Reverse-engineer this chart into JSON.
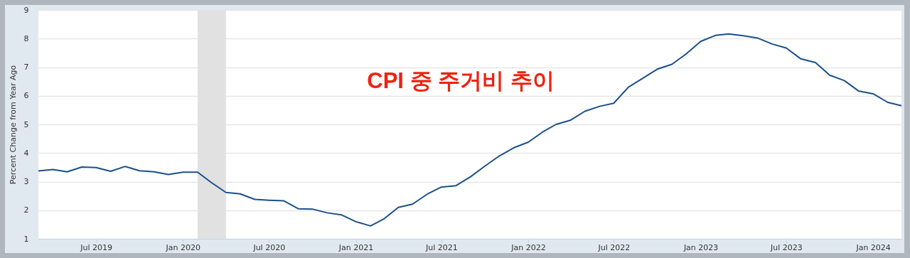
{
  "chart_data": {
    "type": "line",
    "annotations": [
      "CPI 중 주거비 추이"
    ],
    "ylabel": "Percent Change from Year Ago",
    "x": [
      "2019-03",
      "2019-04",
      "2019-05",
      "2019-06",
      "2019-07",
      "2019-08",
      "2019-09",
      "2019-10",
      "2019-11",
      "2019-12",
      "2020-01",
      "2020-02",
      "2020-03",
      "2020-04",
      "2020-05",
      "2020-06",
      "2020-07",
      "2020-08",
      "2020-09",
      "2020-10",
      "2020-11",
      "2020-12",
      "2021-01",
      "2021-02",
      "2021-03",
      "2021-04",
      "2021-05",
      "2021-06",
      "2021-07",
      "2021-08",
      "2021-09",
      "2021-10",
      "2021-11",
      "2021-12",
      "2022-01",
      "2022-02",
      "2022-03",
      "2022-04",
      "2022-05",
      "2022-06",
      "2022-07",
      "2022-08",
      "2022-09",
      "2022-10",
      "2022-11",
      "2022-12",
      "2023-01",
      "2023-02",
      "2023-03",
      "2023-04",
      "2023-05",
      "2023-06",
      "2023-07",
      "2023-08",
      "2023-09",
      "2023-10",
      "2023-11",
      "2023-12",
      "2024-01",
      "2024-02",
      "2024-03"
    ],
    "series": [
      {
        "color": "#1b4f8a",
        "values": [
          3.37,
          3.42,
          3.34,
          3.51,
          3.49,
          3.36,
          3.53,
          3.38,
          3.34,
          3.25,
          3.33,
          3.33,
          2.97,
          2.62,
          2.57,
          2.38,
          2.35,
          2.33,
          2.05,
          2.04,
          1.91,
          1.84,
          1.6,
          1.45,
          1.69,
          2.1,
          2.21,
          2.56,
          2.81,
          2.86,
          3.17,
          3.54,
          3.9,
          4.18,
          4.38,
          4.74,
          5.0,
          5.15,
          5.46,
          5.63,
          5.74,
          6.3,
          6.62,
          6.93,
          7.1,
          7.46,
          7.9,
          8.11,
          8.16,
          8.1,
          8.02,
          7.81,
          7.67,
          7.29,
          7.16,
          6.72,
          6.53,
          6.17,
          6.07,
          5.77,
          5.65
        ]
      }
    ],
    "xlim": [
      "2019-03",
      "2024-03"
    ],
    "xticks": [
      {
        "value": "2019-07",
        "label": "Jul 2019"
      },
      {
        "value": "2020-01",
        "label": "Jan 2020"
      },
      {
        "value": "2020-07",
        "label": "Jul 2020"
      },
      {
        "value": "2021-01",
        "label": "Jan 2021"
      },
      {
        "value": "2021-07",
        "label": "Jul 2021"
      },
      {
        "value": "2022-01",
        "label": "Jan 2022"
      },
      {
        "value": "2022-07",
        "label": "Jul 2022"
      },
      {
        "value": "2023-01",
        "label": "Jan 2023"
      },
      {
        "value": "2023-07",
        "label": "Jul 2023"
      },
      {
        "value": "2024-01",
        "label": "Jan 2024"
      }
    ],
    "ylim": [
      1,
      9
    ],
    "yticks": [
      1,
      2,
      3,
      4,
      5,
      6,
      7,
      8,
      9
    ],
    "bands": [
      {
        "axis": "x",
        "from": "2020-02",
        "to": "2020-04",
        "color": "#e1e1e1"
      }
    ],
    "grid": "y",
    "line_style": "solid"
  }
}
